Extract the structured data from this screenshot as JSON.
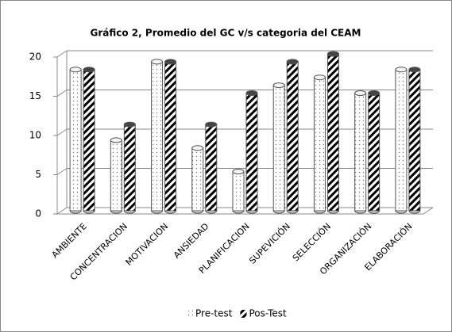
{
  "chart_data": {
    "type": "bar",
    "title": "Gráfico  2, Promedio del GC v/s categoria del CEAM",
    "categories": [
      "AMBIENTE",
      "CONCENTRACION",
      "MOTIVACION",
      "ANSIEDAD",
      "PLANIFICACION",
      "SUPEVICIÓN",
      "SELECCIÓN",
      "ORGANIZACIÓN",
      "ELABORACIÓN"
    ],
    "series": [
      {
        "name": "Pre-test",
        "color": "#ffffff",
        "values": [
          18,
          9,
          19,
          8,
          5,
          16,
          17,
          15,
          18
        ]
      },
      {
        "name": "Pos-Test",
        "color": "#000000",
        "values": [
          18,
          11,
          19,
          11,
          15,
          19,
          20,
          15,
          18
        ]
      }
    ],
    "ylim": [
      0,
      20
    ],
    "yticks": [
      0,
      5,
      10,
      15,
      20
    ],
    "grid": true,
    "legend": "bottom"
  }
}
